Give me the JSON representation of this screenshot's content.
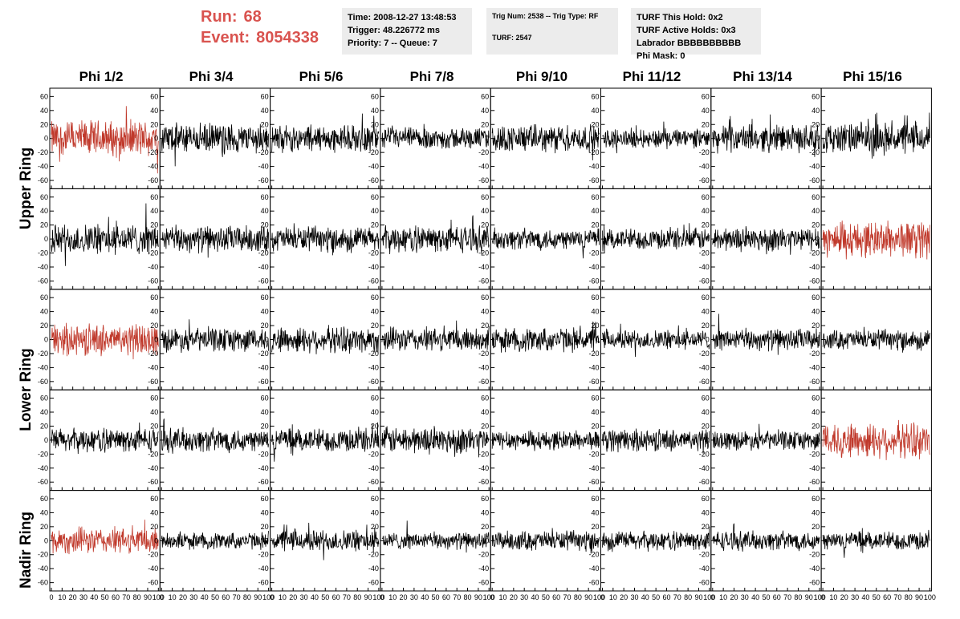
{
  "header": {
    "run_label": "Run:",
    "run_value": "68",
    "event_label": "Event:",
    "event_value": "8054338"
  },
  "info_time": {
    "time": "Time: 2008-12-27 13:48:53",
    "trigger": "Trigger: 48.226772 ms",
    "priority": "Priority: 7 -- Queue: 7"
  },
  "info_trig": {
    "trig": "Trig Num: 2538 -- Trig Type: RF",
    "turf": "TURF: 2547"
  },
  "info_turf": {
    "this_hold": "TURF This Hold: 0x2",
    "active_holds": "TURF Active Holds: 0x3",
    "labrador": "Labrador BBBBBBBBBB",
    "phi_mask": "Phi Mask: 0"
  },
  "columns": [
    "Phi 1/2",
    "Phi 3/4",
    "Phi 5/6",
    "Phi 7/8",
    "Phi 9/10",
    "Phi 11/12",
    "Phi 13/14",
    "Phi 15/16"
  ],
  "ring_labels": [
    {
      "name": "upper",
      "label": "Upper Ring"
    },
    {
      "name": "lower",
      "label": "Lower Ring"
    },
    {
      "name": "nadir",
      "label": "Nadir Ring"
    }
  ],
  "chart_data": {
    "type": "line",
    "rows": 5,
    "cols": 8,
    "ylim": [
      -65,
      65
    ],
    "xlim": [
      0,
      100
    ],
    "y_ticks": [
      -60,
      -40,
      -20,
      0,
      20,
      40,
      60
    ],
    "x_ticks": [
      0,
      10,
      20,
      30,
      40,
      50,
      60,
      70,
      80,
      90,
      100
    ],
    "trace_color": "#000000",
    "highlight_color": "#c0392b",
    "highlighted_panels": [
      [
        0,
        0
      ],
      [
        1,
        7
      ],
      [
        2,
        0
      ],
      [
        3,
        7
      ],
      [
        4,
        0
      ]
    ],
    "panel_amplitudes": [
      [
        30,
        25,
        22,
        18,
        22,
        16,
        22,
        26
      ],
      [
        25,
        22,
        20,
        22,
        18,
        18,
        20,
        30
      ],
      [
        26,
        20,
        22,
        20,
        20,
        16,
        18,
        16
      ],
      [
        20,
        20,
        20,
        22,
        16,
        18,
        16,
        30
      ],
      [
        22,
        14,
        18,
        14,
        16,
        16,
        16,
        16
      ]
    ]
  }
}
